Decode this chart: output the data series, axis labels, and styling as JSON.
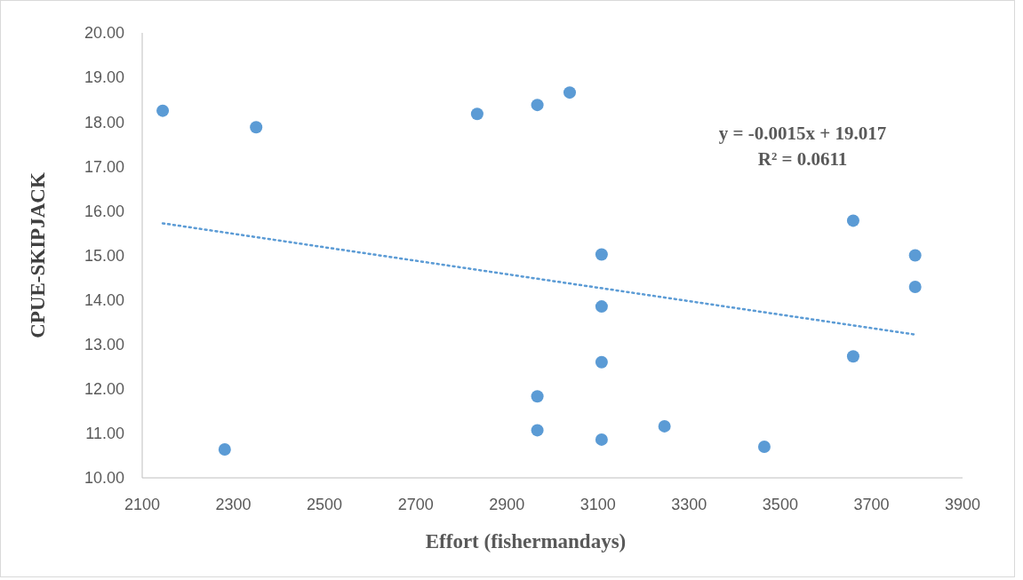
{
  "chart_data": {
    "type": "scatter",
    "xlabel": "Effort (fishermandays)",
    "ylabel": "CPUE-SKIPJACK",
    "xlim": [
      2100,
      3900
    ],
    "xticks": [
      2100,
      2300,
      2500,
      2700,
      2900,
      3100,
      3300,
      3500,
      3700,
      3900
    ],
    "ylim": [
      10,
      20
    ],
    "yticks": [
      {
        "value": 10,
        "label": "10.00"
      },
      {
        "value": 11,
        "label": "11.00"
      },
      {
        "value": 12,
        "label": "12.00"
      },
      {
        "value": 13,
        "label": "13.00"
      },
      {
        "value": 14,
        "label": "14.00"
      },
      {
        "value": 15,
        "label": "15.00"
      },
      {
        "value": 16,
        "label": "16.00"
      },
      {
        "value": 17,
        "label": "17.00"
      },
      {
        "value": 18,
        "label": "18.00"
      },
      {
        "value": 19,
        "label": "19.00"
      },
      {
        "value": 20,
        "label": "20.00"
      }
    ],
    "grid": false,
    "series": [
      {
        "marker": "circle",
        "color": "#5b9bd5",
        "x": [
          2145,
          2281,
          2350,
          2835,
          2967,
          3038,
          3108,
          3108,
          3108,
          2967,
          2967,
          3108,
          3246,
          3465,
          3660,
          3660,
          3796,
          3796
        ],
        "values": [
          18.25,
          10.64,
          17.88,
          18.18,
          18.38,
          18.66,
          15.02,
          13.85,
          12.6,
          11.83,
          11.07,
          10.86,
          11.16,
          10.7,
          15.78,
          12.73,
          15.0,
          14.29
        ]
      },
      {
        "type": "line",
        "line_style": "dotted",
        "color": "#5b9bd5",
        "x": [
          2145,
          3796
        ],
        "values": [
          15.72,
          13.22
        ]
      }
    ],
    "annotations": [
      "y = -0.0015x + 19.017",
      "R² = 0.0611"
    ]
  }
}
